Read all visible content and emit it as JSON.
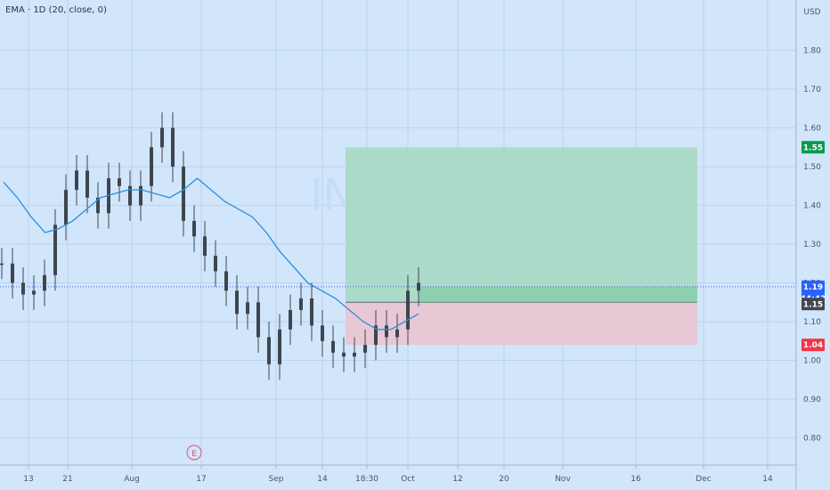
{
  "legend": {
    "label": "EMA · 1D (20, close, 0)"
  },
  "watermark": "INPX, 1h",
  "currency": "USD",
  "colors": {
    "background": "#d1e5fb",
    "grid": "#bcd4ee",
    "candle": "#3d4650",
    "ema": "#2f8fd8",
    "profit_zone": "#a9d9c3",
    "loss_zone": "#e9c4d0",
    "current_price_line": "#2962ff",
    "badge_target": "#089950",
    "badge_current": "#2962ff",
    "badge_entry": "#434651",
    "badge_stop": "#f23645"
  },
  "chart_data": {
    "type": "line",
    "title": "",
    "y_tick_labels": [
      "0.80",
      "0.90",
      "1.00",
      "1.10",
      "1.20",
      "1.30",
      "1.40",
      "1.50",
      "1.60",
      "1.70",
      "1.80"
    ],
    "ylim": [
      0.73,
      1.93
    ],
    "x_tick_labels": [
      "13",
      "21",
      "Aug",
      "17",
      "Sep",
      "14",
      "18:30",
      "Oct",
      "12",
      "20",
      "Nov",
      "16",
      "Dec",
      "14"
    ],
    "ema_series": {
      "name": "EMA · 1D (20, close, 0)",
      "values": [
        1.46,
        1.42,
        1.37,
        1.33,
        1.34,
        1.36,
        1.39,
        1.42,
        1.43,
        1.44,
        1.44,
        1.43,
        1.42,
        1.44,
        1.47,
        1.44,
        1.41,
        1.39,
        1.37,
        1.33,
        1.28,
        1.24,
        1.2,
        1.18,
        1.16,
        1.13,
        1.1,
        1.08,
        1.08,
        1.1,
        1.12
      ]
    },
    "price_series": {
      "name": "INPX",
      "values": [
        1.25,
        1.2,
        1.17,
        1.18,
        1.22,
        1.35,
        1.44,
        1.49,
        1.42,
        1.38,
        1.47,
        1.45,
        1.4,
        1.45,
        1.55,
        1.6,
        1.5,
        1.36,
        1.32,
        1.27,
        1.23,
        1.18,
        1.12,
        1.15,
        1.06,
        0.99,
        1.08,
        1.13,
        1.16,
        1.09,
        1.05,
        1.02,
        1.01,
        1.02,
        1.04,
        1.09,
        1.06,
        1.08,
        1.18,
        1.2
      ]
    },
    "position": {
      "target_price": 1.55,
      "entry_price": 1.15,
      "stop_price": 1.04
    },
    "last_price": 1.19,
    "badges": {
      "target": "1.55",
      "current": "1.19",
      "countdown": "44:43",
      "entry": "1.15",
      "stop": "1.04"
    },
    "event_marker": {
      "label": "E"
    },
    "grid": true
  }
}
